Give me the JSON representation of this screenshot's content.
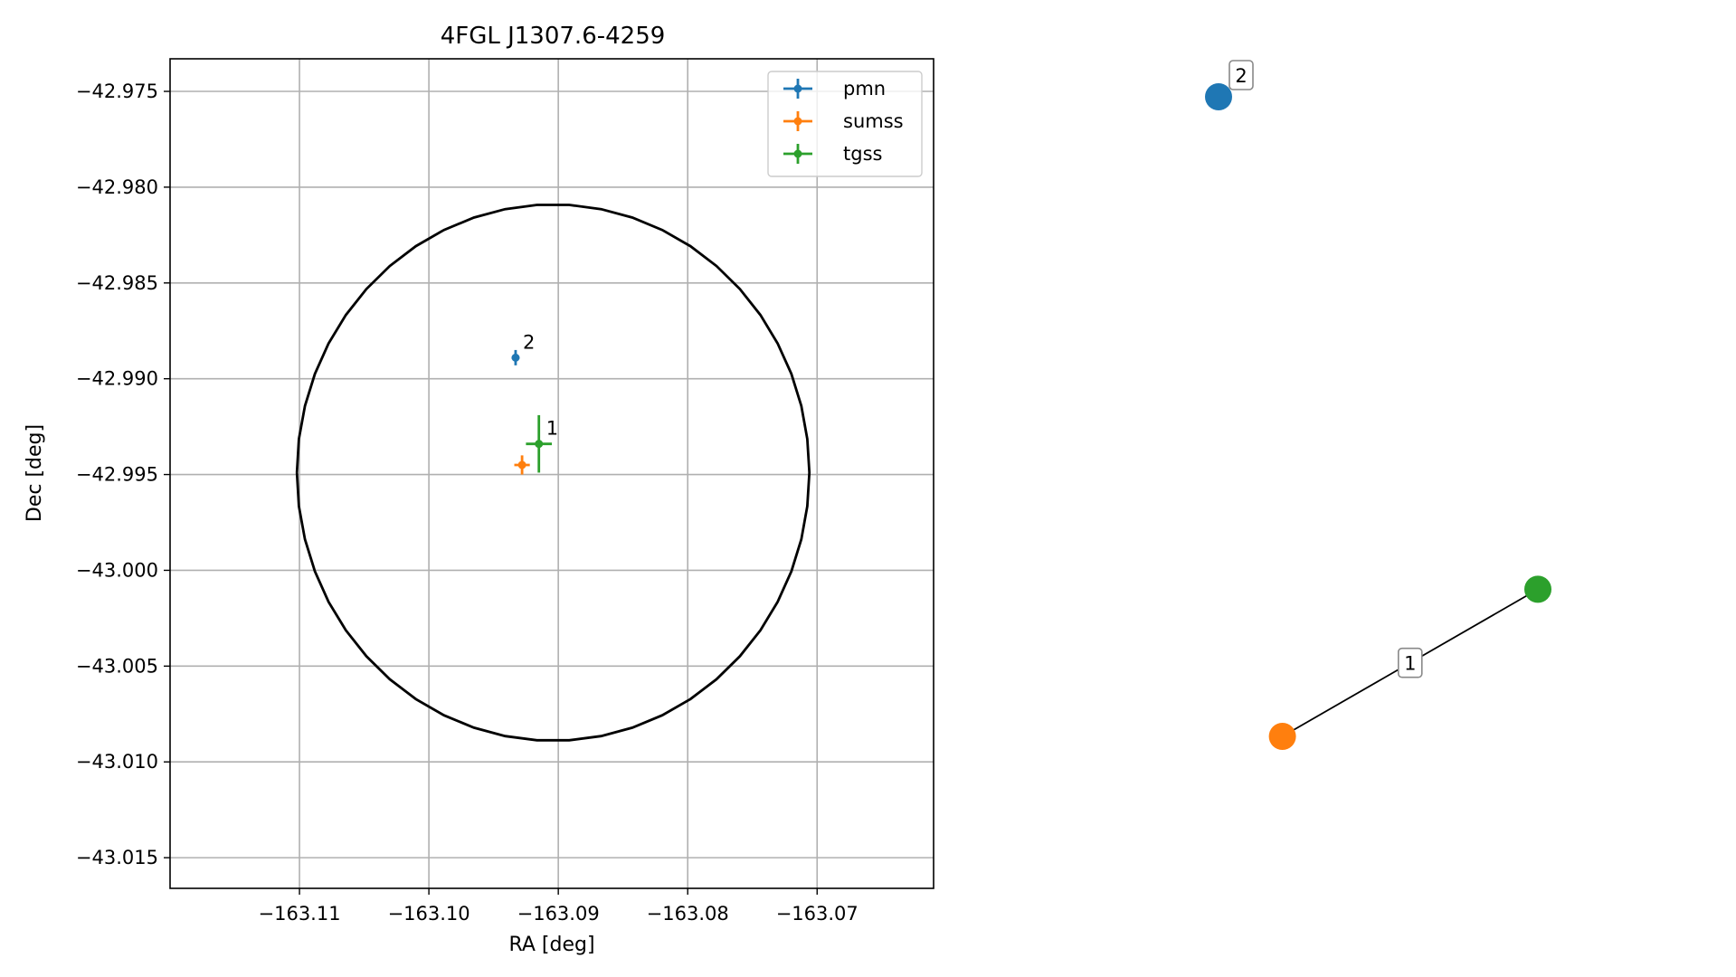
{
  "chart_data": [
    {
      "type": "scatter",
      "title": "4FGL J1307.6-4259",
      "xlabel": "RA [deg]",
      "ylabel": "Dec [deg]",
      "xlim": [
        -163.12,
        -163.061
      ],
      "ylim": [
        -43.0166,
        -42.9733
      ],
      "x_ticks": [
        -163.11,
        -163.1,
        -163.09,
        -163.08,
        -163.07
      ],
      "x_tick_labels": [
        "−163.11",
        "−163.10",
        "−163.09",
        "−163.08",
        "−163.07"
      ],
      "y_ticks": [
        -42.975,
        -42.98,
        -42.985,
        -42.99,
        -42.995,
        -43.0,
        -43.005,
        -43.01,
        -43.015
      ],
      "y_tick_labels": [
        "−42.975",
        "−42.980",
        "−42.985",
        "−42.990",
        "−42.995",
        "−43.000",
        "−43.005",
        "−43.010",
        "−43.015"
      ],
      "grid": true,
      "legend_position": "upper right",
      "series": [
        {
          "name": "pmn",
          "color": "#1f77b4",
          "points": [
            {
              "x": -163.0933,
              "y": -42.9889,
              "xerr": 0.0003,
              "yerr": 0.0004,
              "label": "2"
            }
          ]
        },
        {
          "name": "sumss",
          "color": "#ff7f0e",
          "points": [
            {
              "x": -163.0928,
              "y": -42.9945,
              "xerr": 0.0006,
              "yerr": 0.0005
            }
          ]
        },
        {
          "name": "tgss",
          "color": "#2ca02c",
          "points": [
            {
              "x": -163.0915,
              "y": -42.9934,
              "xerr": 0.001,
              "yerr": 0.0015,
              "label": "1"
            }
          ]
        }
      ],
      "ellipse": {
        "center_x": -163.0904,
        "center_y": -42.9949,
        "radius_x": 0.0198,
        "radius_y": 0.014,
        "color": "#000000"
      }
    },
    {
      "type": "graph",
      "nodes": [
        {
          "id": "pmn",
          "color": "#1f77b4",
          "pos": [
            0.0,
            1.0
          ]
        },
        {
          "id": "sumss",
          "color": "#ff7f0e",
          "pos": [
            0.2,
            0.0
          ]
        },
        {
          "id": "tgss",
          "color": "#2ca02c",
          "pos": [
            1.0,
            0.23
          ]
        }
      ],
      "edges": [
        {
          "source": "sumss",
          "target": "tgss",
          "label": "1"
        }
      ],
      "node_labels": [
        {
          "node": "pmn",
          "label": "2"
        }
      ]
    }
  ]
}
